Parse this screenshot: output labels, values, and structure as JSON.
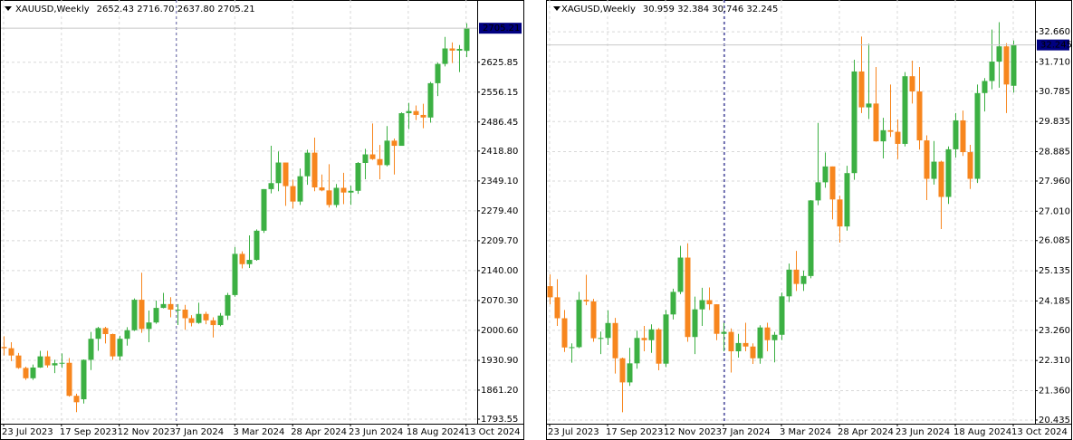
{
  "chart_data": [
    {
      "type": "candlestick",
      "title": "XAUUSD,Weekly",
      "subtitle": "2652.43 2716.70 2637.80 2705.21",
      "categories": [
        "23 Jul 2023",
        null,
        null,
        null,
        null,
        null,
        null,
        null,
        "17 Sep 2023",
        null,
        null,
        null,
        null,
        null,
        null,
        null,
        "12 Nov 2023",
        null,
        null,
        null,
        null,
        null,
        null,
        null,
        "7 Jan 2024",
        null,
        null,
        null,
        null,
        null,
        null,
        null,
        "3 Mar 2024",
        null,
        null,
        null,
        null,
        null,
        null,
        null,
        "28 Apr 2024",
        null,
        null,
        null,
        null,
        null,
        null,
        null,
        "23 Jun 2024",
        null,
        null,
        null,
        null,
        null,
        null,
        null,
        "18 Aug 2024",
        null,
        null,
        null,
        null,
        null,
        null,
        null,
        "13 Oct 2024"
      ],
      "open": [
        1962,
        1959,
        1942,
        1913,
        1889,
        1914,
        1940,
        1919,
        1924,
        1925,
        1848,
        1840,
        1932,
        1981,
        2006,
        1992,
        1940,
        1981,
        2001,
        2072,
        2004,
        2019,
        2053,
        2062,
        2049,
        2049,
        2029,
        2018,
        2039,
        2024,
        2013,
        2035,
        2083,
        2179,
        2155,
        2165,
        2233,
        2330,
        2344,
        2392,
        2337,
        2301,
        2360,
        2415,
        2334,
        2327,
        2293,
        2333,
        2322,
        2326,
        2391,
        2411,
        2400,
        2386,
        2443,
        2431,
        2507,
        2512,
        2503,
        2497,
        2577,
        2622,
        2658,
        2653,
        2652.43
      ],
      "high": [
        1987,
        1973,
        1948,
        1916,
        1921,
        1953,
        1953,
        1932,
        1947,
        1936,
        1853,
        1933,
        1997,
        2009,
        2009,
        1993,
        1988,
        2008,
        2075,
        2135,
        2047,
        2070,
        2088,
        2078,
        2062,
        2060,
        2036,
        2065,
        2044,
        2031,
        2041,
        2088,
        2195,
        2185,
        2222,
        2236,
        2330,
        2431,
        2418,
        2392,
        2352,
        2378,
        2422,
        2450,
        2364,
        2388,
        2342,
        2368,
        2338,
        2393,
        2424,
        2483,
        2433,
        2477,
        2448,
        2509,
        2531,
        2525,
        2529,
        2580,
        2625,
        2685,
        2672,
        2666,
        2716.7
      ],
      "low": [
        1942,
        1929,
        1911,
        1885,
        1885,
        1913,
        1914,
        1901,
        1913,
        1846,
        1810,
        1830,
        1908,
        1953,
        1970,
        1932,
        1931,
        1965,
        1999,
        1995,
        1973,
        2016,
        2052,
        2031,
        2013,
        2002,
        2010,
        2016,
        2015,
        1984,
        2010,
        2025,
        2079,
        2145,
        2146,
        2163,
        2228,
        2320,
        2325,
        2291,
        2285,
        2293,
        2340,
        2325,
        2325,
        2287,
        2287,
        2295,
        2293,
        2319,
        2353,
        2398,
        2353,
        2383,
        2364,
        2431,
        2470,
        2491,
        2472,
        2485,
        2547,
        2616,
        2624,
        2603,
        2637.8
      ],
      "close": [
        1959,
        1942,
        1913,
        1889,
        1914,
        1940,
        1919,
        1924,
        1925,
        1848,
        1833,
        1932,
        1981,
        2006,
        1992,
        1940,
        1981,
        2001,
        2072,
        2004,
        2019,
        2053,
        2062,
        2049,
        2049,
        2029,
        2018,
        2039,
        2024,
        2013,
        2035,
        2083,
        2179,
        2155,
        2165,
        2233,
        2330,
        2344,
        2392,
        2337,
        2301,
        2360,
        2415,
        2334,
        2327,
        2293,
        2333,
        2322,
        2326,
        2391,
        2411,
        2400,
        2386,
        2443,
        2431,
        2507,
        2512,
        2503,
        2497,
        2577,
        2622,
        2658,
        2653,
        2657,
        2705.21
      ],
      "colors": {
        "up": "#3cb043",
        "down": "#f7861e"
      },
      "ylim": [
        1783,
        2771
      ],
      "yticks": [
        2625.85,
        2556.15,
        2486.45,
        {
          "value": 2418.8,
          "label": "2418.80"
        },
        {
          "value": 2349.1,
          "label": "2349.10"
        },
        {
          "value": 2279.4,
          "label": "2279.40"
        },
        {
          "value": 2209.7,
          "label": "2209.70"
        },
        {
          "value": 2140,
          "label": "2140.00"
        },
        {
          "value": 2070.3,
          "label": "2070.30"
        },
        {
          "value": 2000.6,
          "label": "2000.60"
        },
        {
          "value": 1930.9,
          "label": "1930.90"
        },
        {
          "value": 1861.2,
          "label": "1861.20"
        },
        1793.55
      ],
      "grid": true
    },
    {
      "type": "candlestick",
      "title": "XAGUSD,Weekly",
      "subtitle": "30.959 32.384 30.746 32.245",
      "categories": [
        "23 Jul 2023",
        null,
        null,
        null,
        null,
        null,
        null,
        null,
        "17 Sep 2023",
        null,
        null,
        null,
        null,
        null,
        null,
        null,
        "12 Nov 2023",
        null,
        null,
        null,
        null,
        null,
        null,
        null,
        "7 Jan 2024",
        null,
        null,
        null,
        null,
        null,
        null,
        null,
        "3 Mar 2024",
        null,
        null,
        null,
        null,
        null,
        null,
        null,
        "28 Apr 2024",
        null,
        null,
        null,
        null,
        null,
        null,
        null,
        "23 Jun 2024",
        null,
        null,
        null,
        null,
        null,
        null,
        null,
        "18 Aug 2024",
        null,
        null,
        null,
        null,
        null,
        null,
        null,
        "13 Oct 2024"
      ],
      "open": [
        24.65,
        24.3,
        23.64,
        22.72,
        22.73,
        24.22,
        24.17,
        23.01,
        23.02,
        23.49,
        22.38,
        21.62,
        22.22,
        23.02,
        22.95,
        23.29,
        22.21,
        23.76,
        24.47,
        25.55,
        23.05,
        23.92,
        24.21,
        24.08,
        23.15,
        23.21,
        22.6,
        22.86,
        22.75,
        22.38,
        23.35,
        22.95,
        23.12,
        24.33,
        25.17,
        24.72,
        24.97,
        27.35,
        27.92,
        28.42,
        27.38,
        26.53,
        28.21,
        31.41,
        30.28,
        30.4,
        29.21,
        29.56,
        29.51,
        29.13,
        31.26,
        30.78,
        29.24,
        28.03,
        28.57,
        27.46,
        28.96,
        29.87,
        28.87,
        28.03,
        30.73,
        31.11,
        31.72,
        32.2,
        30.959
      ],
      "high": [
        25.02,
        24.87,
        23.9,
        22.85,
        24.47,
        25.01,
        24.25,
        23.22,
        23.89,
        23.65,
        22.4,
        22.71,
        23.25,
        23.4,
        23.45,
        23.33,
        23.9,
        24.57,
        25.92,
        26.0,
        24.32,
        24.6,
        24.61,
        24.08,
        23.5,
        23.32,
        23.15,
        23.5,
        22.85,
        23.42,
        23.5,
        23.21,
        24.45,
        25.36,
        25.76,
        25.14,
        27.36,
        29.79,
        28.86,
        28.42,
        27.5,
        28.44,
        31.78,
        32.51,
        32.28,
        31.55,
        29.95,
        31.0,
        29.9,
        31.39,
        31.75,
        31.55,
        29.4,
        29.22,
        28.6,
        29.05,
        30.1,
        30.18,
        29.1,
        31.0,
        31.2,
        32.73,
        32.96,
        32.3,
        32.384
      ],
      "low": [
        24.08,
        23.4,
        22.58,
        22.24,
        22.7,
        24.05,
        22.9,
        22.51,
        22.8,
        21.9,
        20.68,
        21.51,
        22.05,
        22.6,
        22.55,
        22.0,
        22.1,
        23.6,
        24.4,
        22.9,
        22.51,
        23.4,
        23.9,
        22.95,
        22.6,
        21.93,
        22.4,
        22.6,
        22.2,
        22.21,
        22.6,
        22.25,
        22.95,
        24.15,
        24.5,
        24.5,
        24.9,
        27.2,
        27.75,
        26.75,
        26.02,
        26.4,
        28.0,
        30.1,
        29.91,
        29.2,
        28.67,
        29.35,
        28.65,
        29.05,
        30.4,
        28.95,
        27.36,
        27.85,
        26.45,
        27.24,
        28.7,
        28.75,
        27.71,
        27.9,
        30.15,
        30.85,
        30.9,
        30.1,
        30.746
      ],
      "close": [
        24.3,
        23.64,
        22.72,
        22.73,
        24.22,
        24.17,
        23.01,
        23.02,
        23.49,
        22.38,
        21.62,
        22.22,
        23.02,
        22.95,
        23.29,
        22.21,
        23.76,
        24.47,
        25.55,
        23.05,
        23.92,
        24.21,
        24.08,
        23.15,
        23.21,
        22.6,
        22.86,
        22.75,
        22.38,
        23.35,
        22.95,
        23.12,
        24.33,
        25.17,
        24.72,
        24.97,
        27.35,
        27.92,
        28.42,
        27.38,
        26.53,
        28.21,
        31.41,
        30.28,
        30.4,
        29.21,
        29.56,
        29.51,
        29.13,
        31.26,
        30.78,
        29.24,
        28.03,
        28.57,
        27.46,
        28.96,
        29.87,
        28.87,
        28.03,
        30.73,
        31.11,
        31.72,
        32.2,
        31.0,
        32.245
      ],
      "colors": {
        "up": "#3cb043",
        "down": "#f7861e"
      },
      "ylim": [
        20.32,
        33.66
      ],
      "yticks": [
        {
          "value": 32.66,
          "label": "32.660"
        },
        {
          "value": 31.71,
          "label": "31.710"
        },
        30.785,
        29.835,
        28.885,
        {
          "value": 27.96,
          "label": "27.960"
        },
        {
          "value": 27.01,
          "label": "27.010"
        },
        26.085,
        25.135,
        24.185,
        {
          "value": 23.26,
          "label": "23.260"
        },
        {
          "value": 22.31,
          "label": "22.310"
        },
        {
          "value": 21.36,
          "label": "21.360"
        },
        20.435
      ],
      "grid": true
    }
  ]
}
